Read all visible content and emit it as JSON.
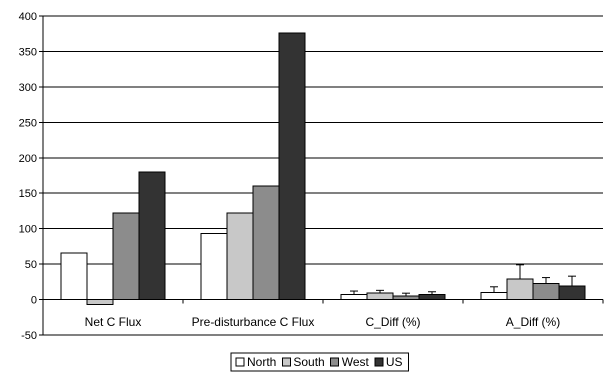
{
  "chart_data": {
    "type": "bar",
    "categories": [
      "Net C Flux",
      "Pre-disturbance C Flux",
      "C_Diff (%)",
      "A_Diff (%)"
    ],
    "series": [
      {
        "name": "North",
        "color": "#ffffff",
        "values": [
          66,
          93,
          7,
          10
        ],
        "error": [
          null,
          null,
          5,
          8
        ]
      },
      {
        "name": "South",
        "color": "#c8c8c8",
        "values": [
          -7,
          122,
          9,
          29
        ],
        "error": [
          null,
          null,
          4,
          20
        ]
      },
      {
        "name": "West",
        "color": "#8c8c8c",
        "values": [
          122,
          160,
          5,
          23
        ],
        "error": [
          null,
          null,
          4,
          8
        ]
      },
      {
        "name": "US",
        "color": "#333333",
        "values": [
          180,
          376,
          7,
          19
        ],
        "error": [
          null,
          null,
          4,
          14
        ]
      }
    ],
    "yticks": [
      -50,
      0,
      50,
      100,
      150,
      200,
      250,
      300,
      350,
      400
    ],
    "ylim": [
      -50,
      400
    ],
    "grid": true,
    "legend_position": "bottom-center",
    "title": "",
    "xlabel": "",
    "ylabel": ""
  }
}
